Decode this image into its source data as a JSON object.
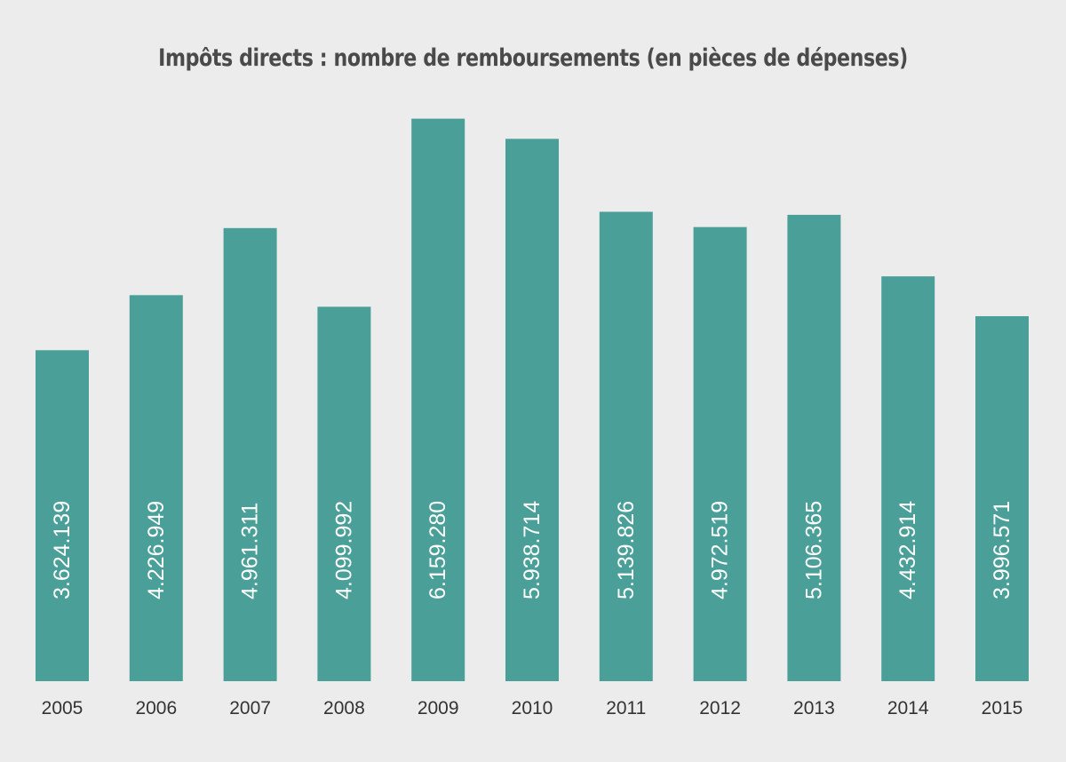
{
  "chart_data": {
    "type": "bar",
    "title": "Impôts directs : nombre de remboursements (en pièces de dépenses)",
    "categories": [
      "2005",
      "2006",
      "2007",
      "2008",
      "2009",
      "2010",
      "2011",
      "2012",
      "2013",
      "2014",
      "2015"
    ],
    "values": [
      3624139,
      4226949,
      4961311,
      4099992,
      6159280,
      5938714,
      5139826,
      4972519,
      5106365,
      4432914,
      3996571
    ],
    "data_labels": [
      "3.624.139",
      "4.226.949",
      "4.961.311",
      "4.099.992",
      "6.159.280",
      "5.938.714",
      "5.139.826",
      "4.972.519",
      "5.106.365",
      "4.432.914",
      "3.996.571"
    ],
    "bar_color": "#4aa098",
    "background_color": "#ececec",
    "xlabel": "",
    "ylabel": "",
    "grid": false,
    "legend": "none"
  }
}
